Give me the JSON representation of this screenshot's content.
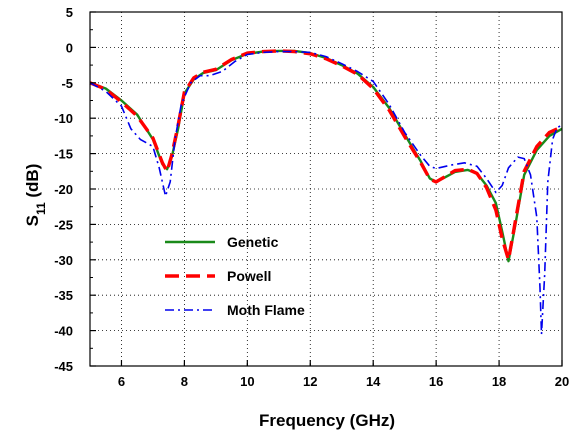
{
  "chart_data": {
    "type": "line",
    "xlabel": "Frequency (GHz)",
    "ylabel_main": "S",
    "ylabel_sub": "11",
    "ylabel_unit": " (dB)",
    "xlim": [
      5,
      20
    ],
    "ylim": [
      -45,
      5
    ],
    "x_ticks": [
      6,
      8,
      10,
      12,
      14,
      16,
      18,
      20
    ],
    "y_ticks": [
      5,
      0,
      -5,
      -10,
      -15,
      -20,
      -25,
      -30,
      -35,
      -40,
      -45
    ],
    "grid": true,
    "legend_position": "bottom-left",
    "series": [
      {
        "name": "Genetic",
        "color": "#1a8a1a",
        "style": "solid",
        "points": [
          [
            5,
            -5
          ],
          [
            5.5,
            -5.8
          ],
          [
            6,
            -7.5
          ],
          [
            6.5,
            -9.5
          ],
          [
            7,
            -13
          ],
          [
            7.3,
            -16.5
          ],
          [
            7.45,
            -17.2
          ],
          [
            7.6,
            -15.5
          ],
          [
            7.8,
            -11.5
          ],
          [
            8,
            -6.5
          ],
          [
            8.3,
            -4.5
          ],
          [
            8.6,
            -3.6
          ],
          [
            9,
            -3.2
          ],
          [
            9.5,
            -1.8
          ],
          [
            10,
            -0.9
          ],
          [
            10.5,
            -0.6
          ],
          [
            11,
            -0.5
          ],
          [
            11.5,
            -0.5
          ],
          [
            12,
            -0.8
          ],
          [
            12.5,
            -1.5
          ],
          [
            13,
            -2.5
          ],
          [
            13.5,
            -3.7
          ],
          [
            14,
            -5.6
          ],
          [
            14.5,
            -8.5
          ],
          [
            15,
            -12.3
          ],
          [
            15.5,
            -16
          ],
          [
            15.8,
            -18.5
          ],
          [
            16,
            -19
          ],
          [
            16.3,
            -18.3
          ],
          [
            16.6,
            -17.6
          ],
          [
            17,
            -17.3
          ],
          [
            17.3,
            -17.8
          ],
          [
            17.6,
            -19.5
          ],
          [
            17.9,
            -22
          ],
          [
            18.1,
            -26
          ],
          [
            18.3,
            -30.2
          ],
          [
            18.5,
            -25.5
          ],
          [
            18.8,
            -18
          ],
          [
            19.2,
            -14.5
          ],
          [
            19.6,
            -12.5
          ],
          [
            20,
            -11.5
          ]
        ]
      },
      {
        "name": "Powell",
        "color": "#ff0000",
        "style": "dashed",
        "points": [
          [
            5,
            -5
          ],
          [
            5.5,
            -5.9
          ],
          [
            6,
            -7.7
          ],
          [
            6.5,
            -9.7
          ],
          [
            7,
            -12.8
          ],
          [
            7.3,
            -16.3
          ],
          [
            7.45,
            -17.5
          ],
          [
            7.6,
            -15.2
          ],
          [
            7.8,
            -11
          ],
          [
            8,
            -6.3
          ],
          [
            8.3,
            -4.3
          ],
          [
            8.6,
            -3.5
          ],
          [
            9,
            -3.1
          ],
          [
            9.5,
            -1.7
          ],
          [
            10,
            -0.8
          ],
          [
            10.5,
            -0.6
          ],
          [
            11,
            -0.5
          ],
          [
            11.5,
            -0.6
          ],
          [
            12,
            -0.9
          ],
          [
            12.5,
            -1.6
          ],
          [
            13,
            -2.6
          ],
          [
            13.5,
            -3.8
          ],
          [
            14,
            -5.8
          ],
          [
            14.5,
            -8.8
          ],
          [
            15,
            -12.6
          ],
          [
            15.5,
            -16.2
          ],
          [
            15.8,
            -18.6
          ],
          [
            16,
            -19
          ],
          [
            16.3,
            -18.2
          ],
          [
            16.6,
            -17.4
          ],
          [
            17,
            -17.2
          ],
          [
            17.3,
            -17.8
          ],
          [
            17.6,
            -19.8
          ],
          [
            17.9,
            -23
          ],
          [
            18.1,
            -27
          ],
          [
            18.3,
            -30
          ],
          [
            18.5,
            -25
          ],
          [
            18.8,
            -17.5
          ],
          [
            19.2,
            -14
          ],
          [
            19.6,
            -12
          ],
          [
            20,
            -11.2
          ]
        ]
      },
      {
        "name": "Moth Flame",
        "color": "#0000ee",
        "style": "dashdot",
        "points": [
          [
            5,
            -5
          ],
          [
            5.5,
            -6.2
          ],
          [
            6,
            -8.3
          ],
          [
            6.3,
            -11.5
          ],
          [
            6.6,
            -13
          ],
          [
            7,
            -14
          ],
          [
            7.2,
            -17
          ],
          [
            7.4,
            -21
          ],
          [
            7.55,
            -19
          ],
          [
            7.7,
            -13
          ],
          [
            7.9,
            -8
          ],
          [
            8.2,
            -5
          ],
          [
            8.5,
            -4
          ],
          [
            8.8,
            -4
          ],
          [
            9.2,
            -3.4
          ],
          [
            9.6,
            -2
          ],
          [
            10,
            -1
          ],
          [
            10.5,
            -0.7
          ],
          [
            11,
            -0.6
          ],
          [
            11.5,
            -0.6
          ],
          [
            12,
            -0.7
          ],
          [
            12.5,
            -1.3
          ],
          [
            13,
            -2.3
          ],
          [
            13.5,
            -3.4
          ],
          [
            14,
            -4.8
          ],
          [
            14.5,
            -8
          ],
          [
            15,
            -12
          ],
          [
            15.5,
            -15.2
          ],
          [
            15.8,
            -16.8
          ],
          [
            16,
            -17.1
          ],
          [
            16.5,
            -16.6
          ],
          [
            16.9,
            -16.3
          ],
          [
            17.3,
            -16.8
          ],
          [
            17.6,
            -18.5
          ],
          [
            17.9,
            -20.5
          ],
          [
            18.1,
            -19.5
          ],
          [
            18.3,
            -17
          ],
          [
            18.6,
            -15.5
          ],
          [
            18.8,
            -15.7
          ],
          [
            19,
            -18
          ],
          [
            19.2,
            -24
          ],
          [
            19.3,
            -34
          ],
          [
            19.35,
            -40.5
          ],
          [
            19.45,
            -32
          ],
          [
            19.55,
            -19
          ],
          [
            19.7,
            -13
          ],
          [
            19.85,
            -11.3
          ],
          [
            20,
            -11
          ]
        ]
      }
    ]
  }
}
